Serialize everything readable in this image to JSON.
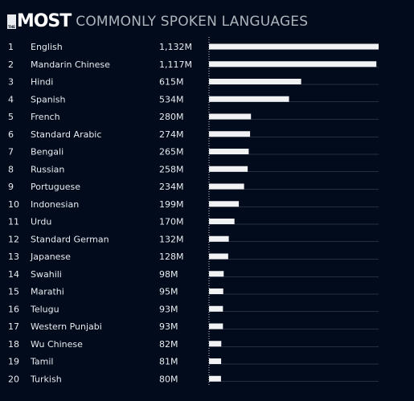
{
  "header": {
    "the": "THE",
    "most": "MOST",
    "subtitle": "COMMONLY SPOKEN LANGUAGES"
  },
  "colors": {
    "background": "#020b1c",
    "bar": "#f1f2f4",
    "text": "#e8ebef",
    "subtitle": "#aeb4bc",
    "gridline": "#4a5260",
    "axis": "#c9ccd1"
  },
  "chart_data": {
    "type": "bar",
    "orientation": "horizontal",
    "title": "THE MOST COMMONLY SPOKEN LANGUAGES",
    "xlim": [
      0,
      1132
    ],
    "grid": true,
    "legend": "none",
    "ranks": [
      "1",
      "2",
      "3",
      "4",
      "5",
      "6",
      "7",
      "8",
      "9",
      "10",
      "11",
      "12",
      "13",
      "14",
      "15",
      "16",
      "17",
      "18",
      "19",
      "20"
    ],
    "categories": [
      "English",
      "Mandarin Chinese",
      "Hindi",
      "Spanish",
      "French",
      "Standard Arabic",
      "Bengali",
      "Russian",
      "Portuguese",
      "Indonesian",
      "Urdu",
      "Standard German",
      "Japanese",
      "Swahili",
      "Marathi",
      "Telugu",
      "Western Punjabi",
      "Wu Chinese",
      "Tamil",
      "Turkish"
    ],
    "values": [
      1132,
      1117,
      615,
      534,
      280,
      274,
      265,
      258,
      234,
      199,
      170,
      132,
      128,
      98,
      95,
      93,
      93,
      82,
      81,
      80
    ],
    "value_labels": [
      "1,132M",
      "1,117M",
      "615M",
      "534M",
      "280M",
      "274M",
      "265M",
      "258M",
      "234M",
      "199M",
      "170M",
      "132M",
      "128M",
      "98M",
      "95M",
      "93M",
      "93M",
      "82M",
      "81M",
      "80M"
    ]
  }
}
